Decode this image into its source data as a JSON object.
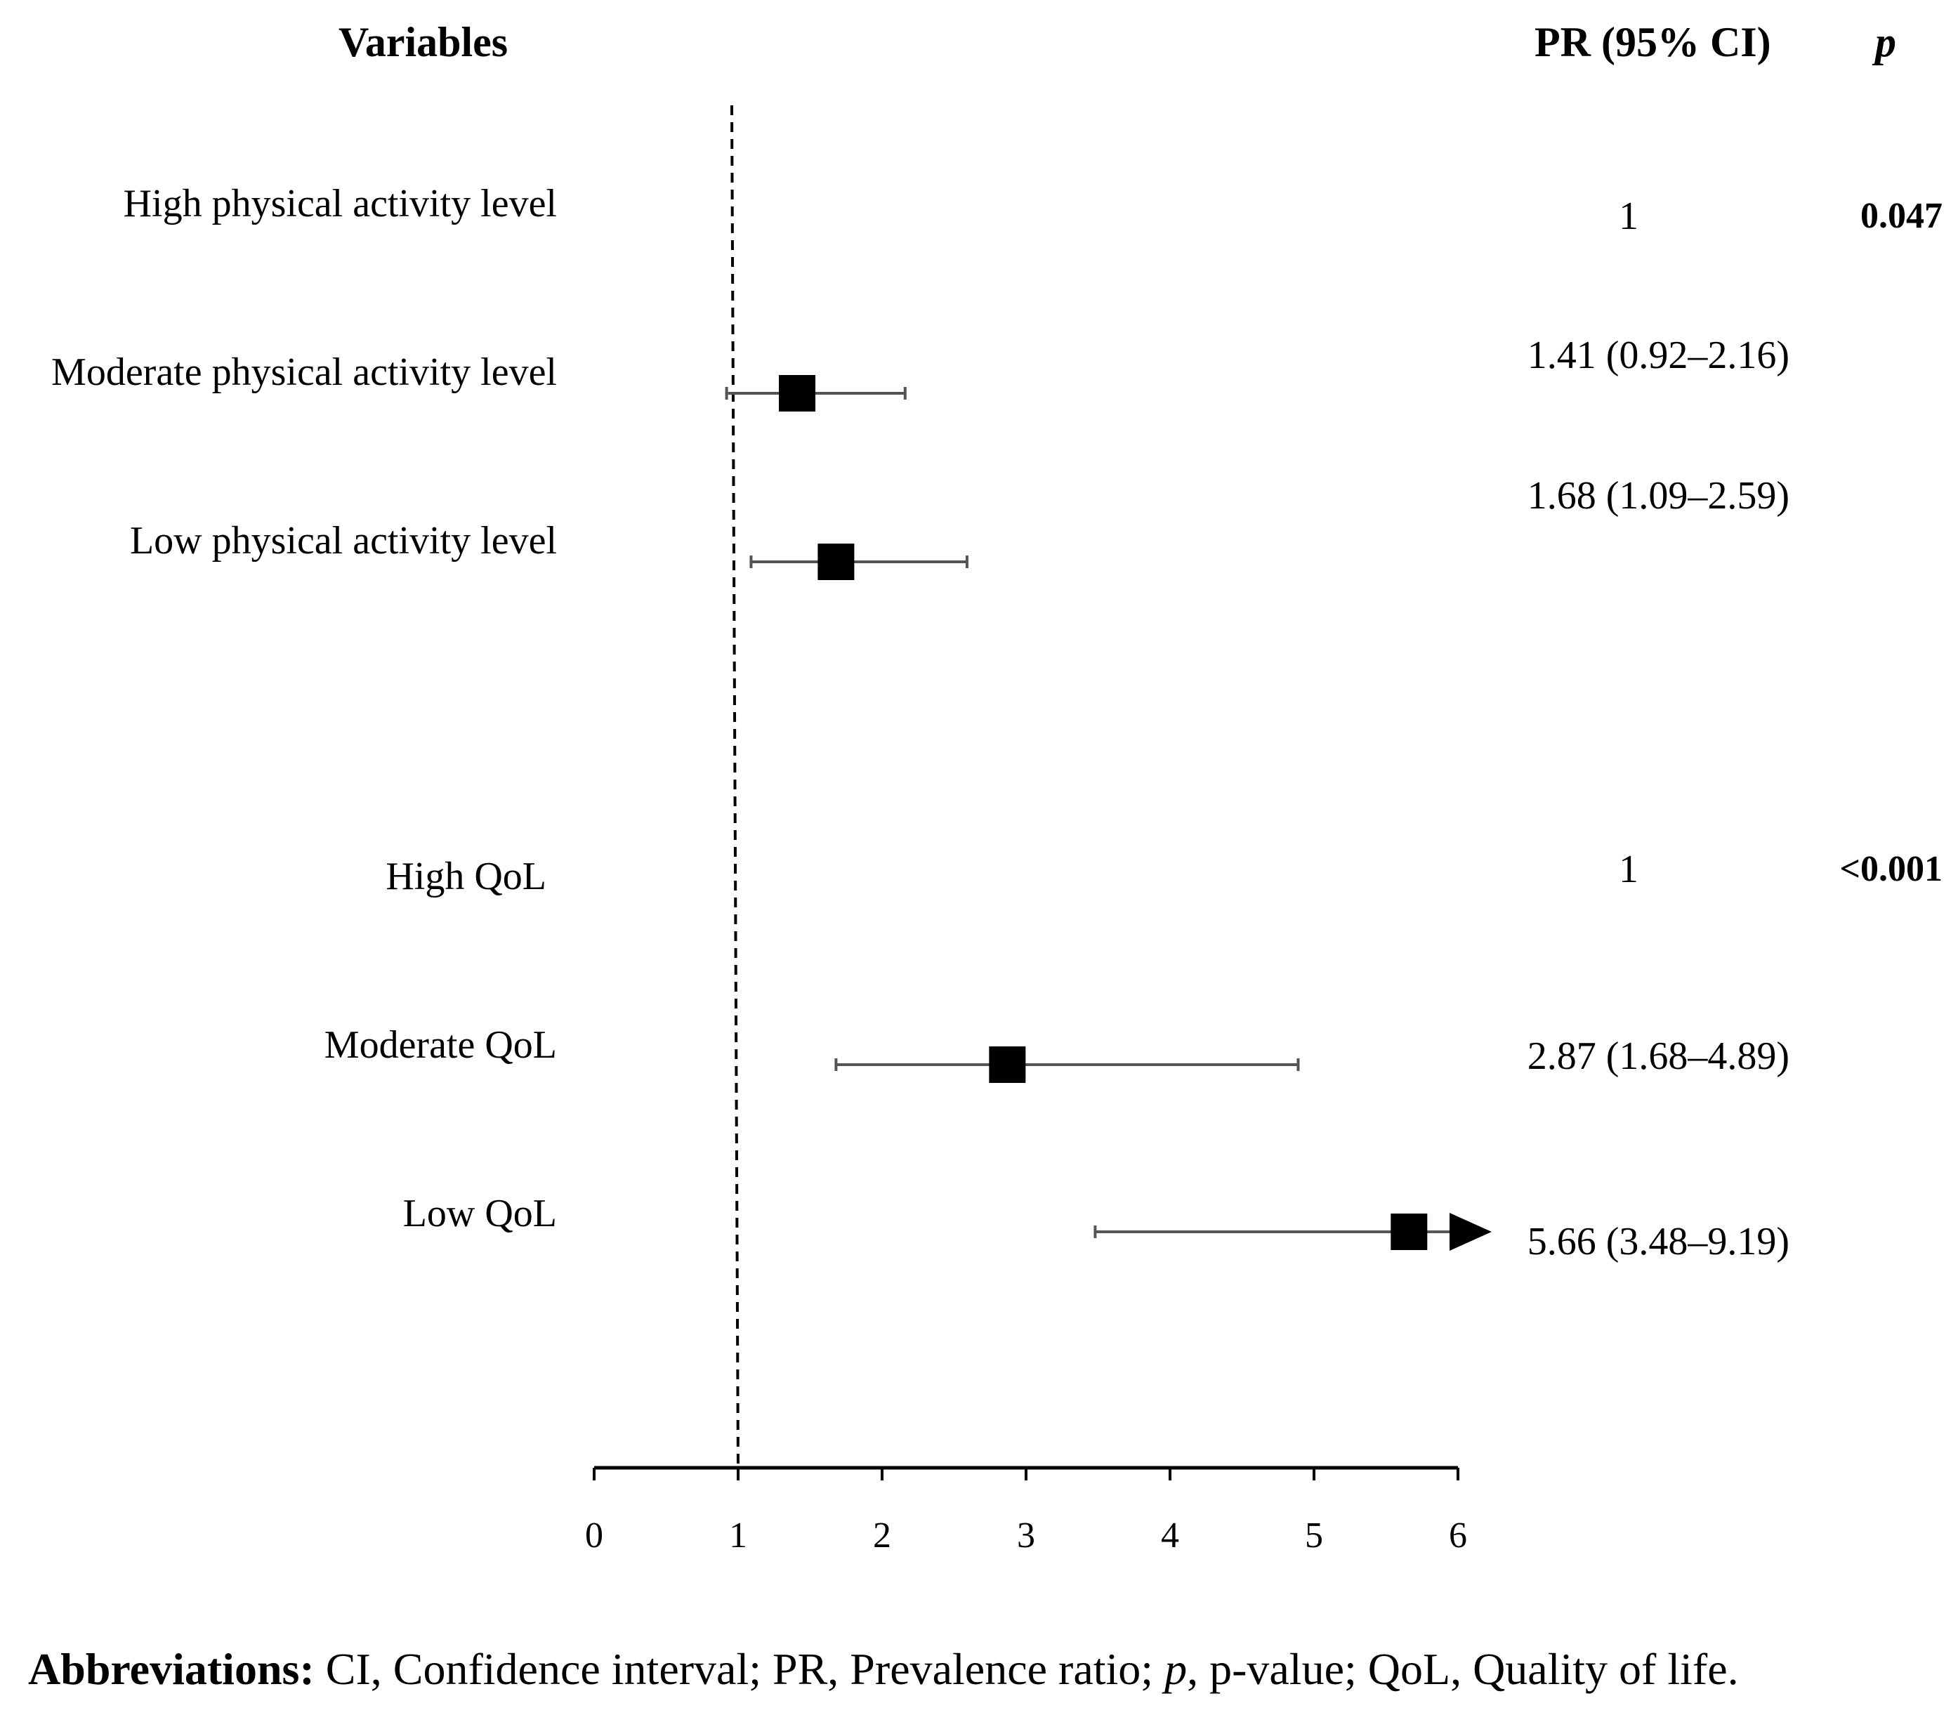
{
  "headers": {
    "variables": "Variables",
    "pr": "PR (95% CI)",
    "p": "p"
  },
  "rows": [
    {
      "label": "High physical activity level",
      "pr_text": "1",
      "p": "0.047"
    },
    {
      "label": "Moderate physical activity level",
      "pr_text": "1.41 (0.92–2.16)",
      "p": ""
    },
    {
      "label": "Low physical activity level",
      "pr_text": "1.68 (1.09–2.59)",
      "p": ""
    },
    {
      "label": "High QoL",
      "pr_text": "1",
      "p": "<0.001"
    },
    {
      "label": "Moderate QoL",
      "pr_text": "2.87 (1.68–4.89)",
      "p": ""
    },
    {
      "label": "Low QoL",
      "pr_text": "5.66 (3.48–9.19)",
      "p": ""
    }
  ],
  "chart_data": {
    "type": "forest",
    "title": "",
    "xlabel": "",
    "ylabel": "",
    "xlim": [
      0,
      6
    ],
    "x_ticks": [
      "0",
      "1",
      "2",
      "3",
      "4",
      "5",
      "6"
    ],
    "reference_line": 1,
    "series": [
      {
        "name": "Moderate physical activity level",
        "estimate": 1.41,
        "lower": 0.92,
        "upper": 2.16
      },
      {
        "name": "Low physical activity level",
        "estimate": 1.68,
        "lower": 1.09,
        "upper": 2.59
      },
      {
        "name": "Moderate QoL",
        "estimate": 2.87,
        "lower": 1.68,
        "upper": 4.89
      },
      {
        "name": "Low QoL",
        "estimate": 5.66,
        "lower": 3.48,
        "upper": 9.19,
        "truncated": true
      }
    ]
  },
  "caption": {
    "bold": "Abbreviations:",
    "part1": " CI, Confidence interval; PR, Prevalence ratio; ",
    "italic": "p",
    "part2": ", p-value; QoL, Quality of life."
  },
  "colors": {
    "marker": "#000000",
    "ci_line": "#555555",
    "axis": "#000000"
  }
}
